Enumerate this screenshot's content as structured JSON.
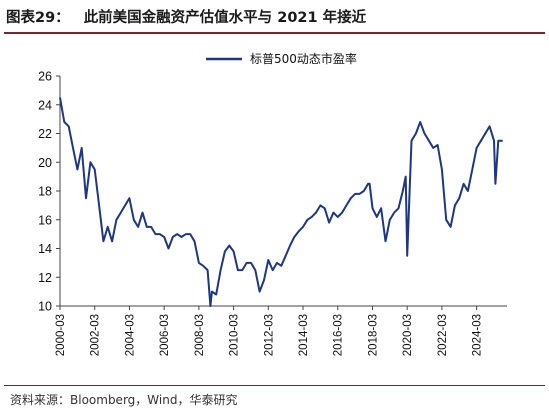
{
  "figure": {
    "label": "图表29：",
    "title": "此前美国金融资产估值水平与 2021 年接近",
    "source": "资料来源：Bloomberg，Wind，华泰研究"
  },
  "chart_data": {
    "type": "line",
    "title": "",
    "xlabel": "",
    "ylabel": "",
    "ylim": [
      10,
      26
    ],
    "yticks": [
      10,
      12,
      14,
      16,
      18,
      20,
      22,
      24,
      26
    ],
    "xlim": [
      "2000-03",
      "2025-12"
    ],
    "xticks": [
      "2000-03",
      "2002-03",
      "2004-03",
      "2006-03",
      "2008-03",
      "2010-03",
      "2012-03",
      "2014-03",
      "2016-03",
      "2018-03",
      "2020-03",
      "2022-03",
      "2024-03"
    ],
    "legend_position": "top-center",
    "grid": false,
    "series": [
      {
        "name": "标普500动态市盈率",
        "color": "#1f3680",
        "x": [
          "2000-03",
          "2000-06",
          "2000-09",
          "2000-12",
          "2001-03",
          "2001-06",
          "2001-09",
          "2001-12",
          "2002-03",
          "2002-06",
          "2002-09",
          "2002-12",
          "2003-03",
          "2003-06",
          "2003-09",
          "2003-12",
          "2004-03",
          "2004-06",
          "2004-09",
          "2004-12",
          "2005-03",
          "2005-06",
          "2005-09",
          "2005-12",
          "2006-03",
          "2006-06",
          "2006-09",
          "2006-12",
          "2007-03",
          "2007-06",
          "2007-09",
          "2007-12",
          "2008-03",
          "2008-06",
          "2008-09",
          "2008-11",
          "2008-12",
          "2009-03",
          "2009-06",
          "2009-09",
          "2009-12",
          "2010-03",
          "2010-06",
          "2010-09",
          "2010-12",
          "2011-03",
          "2011-06",
          "2011-09",
          "2011-12",
          "2012-03",
          "2012-06",
          "2012-09",
          "2012-12",
          "2013-03",
          "2013-06",
          "2013-09",
          "2013-12",
          "2014-03",
          "2014-06",
          "2014-09",
          "2014-12",
          "2015-03",
          "2015-06",
          "2015-09",
          "2015-12",
          "2016-03",
          "2016-06",
          "2016-09",
          "2016-12",
          "2017-03",
          "2017-06",
          "2017-09",
          "2017-12",
          "2018-01",
          "2018-03",
          "2018-06",
          "2018-09",
          "2018-12",
          "2019-03",
          "2019-06",
          "2019-09",
          "2019-12",
          "2020-02",
          "2020-03",
          "2020-06",
          "2020-09",
          "2020-12",
          "2021-03",
          "2021-06",
          "2021-09",
          "2021-12",
          "2022-03",
          "2022-06",
          "2022-09",
          "2022-12",
          "2023-03",
          "2023-06",
          "2023-09",
          "2023-12",
          "2024-03",
          "2024-06",
          "2024-09",
          "2024-12",
          "2025-03",
          "2025-04",
          "2025-06",
          "2025-09"
        ],
        "values": [
          24.5,
          22.8,
          22.5,
          21.0,
          19.5,
          21.0,
          17.5,
          20.0,
          19.5,
          17.0,
          14.5,
          15.5,
          14.5,
          16.0,
          16.5,
          17.0,
          17.5,
          16.0,
          15.5,
          16.5,
          15.5,
          15.5,
          15.0,
          15.0,
          14.8,
          14.0,
          14.8,
          15.0,
          14.8,
          15.0,
          15.0,
          14.5,
          13.0,
          12.8,
          12.5,
          10.0,
          11.0,
          10.8,
          12.5,
          13.8,
          14.2,
          13.8,
          12.5,
          12.5,
          13.0,
          13.0,
          12.5,
          11.0,
          11.8,
          13.2,
          12.5,
          13.0,
          12.8,
          13.5,
          14.2,
          14.8,
          15.2,
          15.5,
          16.0,
          16.2,
          16.5,
          17.0,
          16.8,
          15.8,
          16.5,
          16.2,
          16.5,
          17.0,
          17.5,
          17.8,
          17.8,
          18.0,
          18.5,
          18.5,
          16.8,
          16.2,
          16.8,
          14.5,
          16.0,
          16.5,
          16.8,
          18.0,
          19.0,
          13.5,
          21.5,
          22.0,
          22.8,
          22.0,
          21.5,
          21.0,
          21.2,
          19.5,
          16.0,
          15.5,
          17.0,
          17.5,
          18.5,
          18.0,
          19.5,
          21.0,
          21.5,
          22.0,
          22.5,
          21.5,
          18.5,
          21.5,
          21.5
        ]
      }
    ]
  }
}
